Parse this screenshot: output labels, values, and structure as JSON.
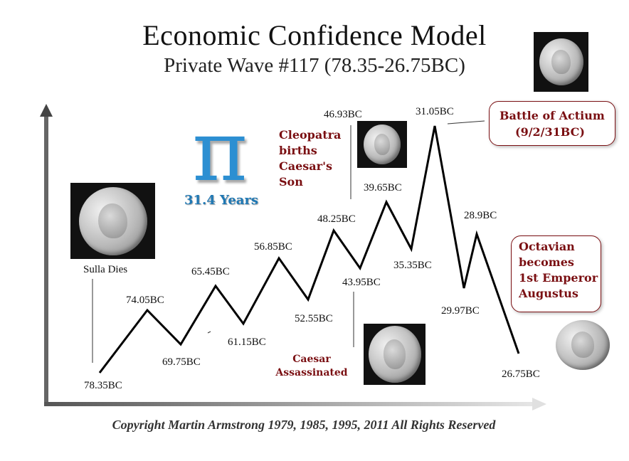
{
  "title": "Economic Confidence Model",
  "subtitle": "Private Wave #117 (78.35-26.75BC)",
  "pi": {
    "symbol": "π",
    "caption": "31.4 Years",
    "color": "#2c8fd2"
  },
  "events": {
    "sulla": "Sulla Dies",
    "cleopatra": [
      "Cleopatra",
      "births",
      "Caesar's",
      "Son"
    ],
    "caesar": [
      "Caesar",
      "Assassinated"
    ],
    "actium": [
      "Battle of Actium",
      "(9/2/31BC)"
    ],
    "octavian": [
      "Octavian",
      "becomes",
      "1st Emperor",
      "Augustus"
    ]
  },
  "colors": {
    "event_text": "#7a0f12",
    "line": "#000000",
    "pi_blue": "#2c8fd2"
  },
  "copyright": "Copyright Martin Armstrong 1979, 1985, 1995, 2011 All Rights Reserved",
  "chart_data": {
    "type": "line",
    "title": "Economic Confidence Model",
    "subtitle": "Private Wave #117 (78.35-26.75BC)",
    "xlabel": "",
    "ylabel": "",
    "grid": false,
    "points": [
      {
        "label": "78.35BC",
        "x": 78.35,
        "kind": "low"
      },
      {
        "label": "74.05BC",
        "x": 74.05,
        "kind": "high"
      },
      {
        "label": "69.75BC",
        "x": 69.75,
        "kind": "low"
      },
      {
        "label": "65.45BC",
        "x": 65.45,
        "kind": "high"
      },
      {
        "label": "61.15BC",
        "x": 61.15,
        "kind": "low"
      },
      {
        "label": "56.85BC",
        "x": 56.85,
        "kind": "high"
      },
      {
        "label": "52.55BC",
        "x": 52.55,
        "kind": "low"
      },
      {
        "label": "48.25BC",
        "x": 48.25,
        "kind": "high"
      },
      {
        "label": "43.95BC",
        "x": 43.95,
        "kind": "low"
      },
      {
        "label": "39.65BC",
        "x": 39.65,
        "kind": "high"
      },
      {
        "label": "35.35BC",
        "x": 35.35,
        "kind": "low"
      },
      {
        "label": "31.05BC",
        "x": 31.05,
        "kind": "high"
      },
      {
        "label": "29.97BC",
        "x": 29.97,
        "kind": "low"
      },
      {
        "label": "28.9BC",
        "x": 28.9,
        "kind": "high"
      },
      {
        "label": "26.75BC",
        "x": 26.75,
        "kind": "low"
      }
    ],
    "annotations": [
      "46.93BC"
    ]
  }
}
